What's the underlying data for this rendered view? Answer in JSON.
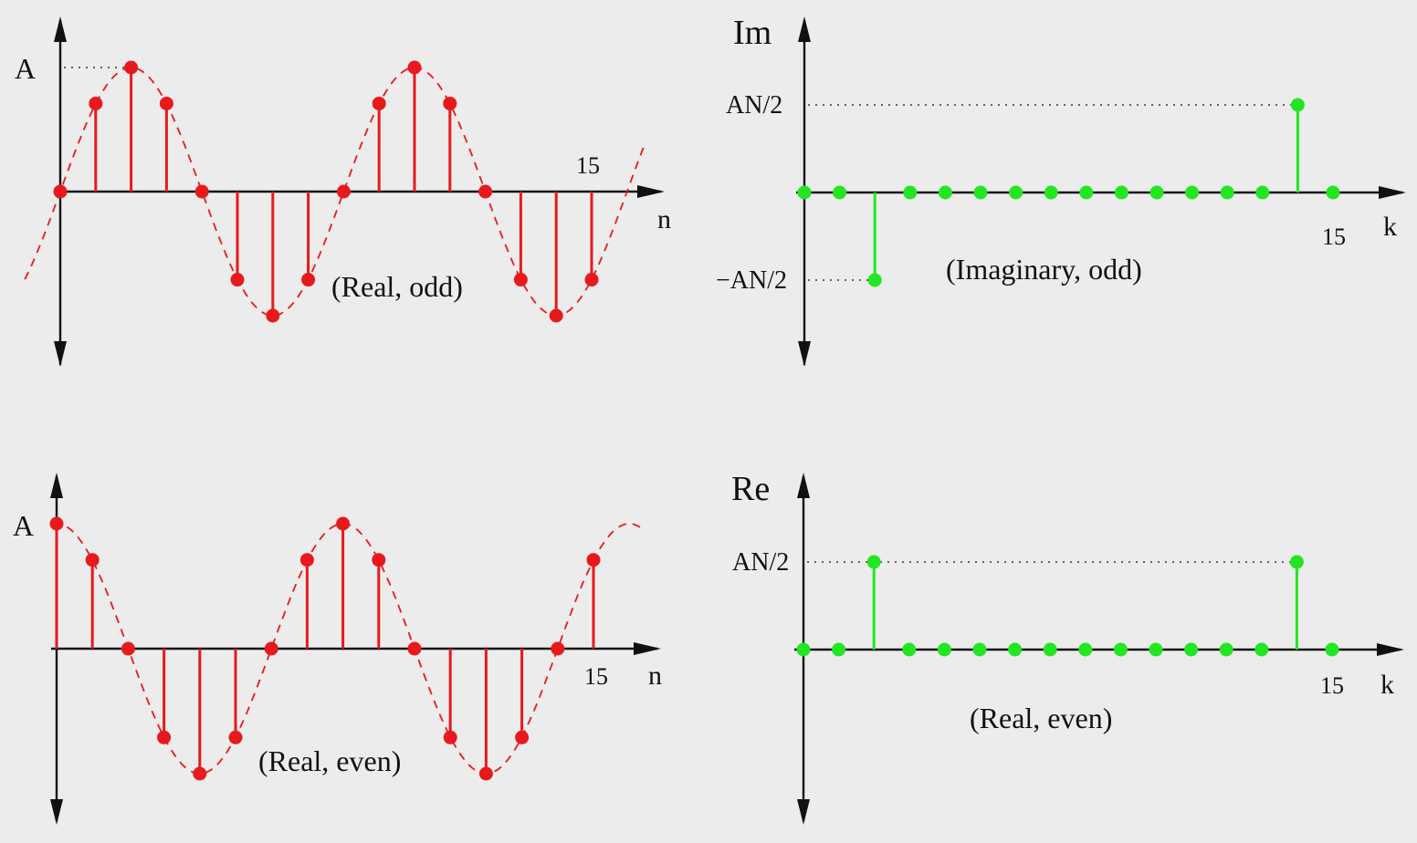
{
  "colors": {
    "background": "#ececec",
    "time_signal": "#e8191c",
    "spectrum": "#22e622",
    "axis": "#111111"
  },
  "chart_data": [
    {
      "type": "stem",
      "caption": "(Real, odd)",
      "xlabel": "n",
      "y_label": "A",
      "x_tick_label": "15",
      "x": [
        0,
        1,
        2,
        3,
        4,
        5,
        6,
        7,
        8,
        9,
        10,
        11,
        12,
        13,
        14,
        15
      ],
      "values": [
        0,
        0.71,
        1,
        0.71,
        0,
        -0.71,
        -1,
        -0.71,
        0,
        0.71,
        1,
        0.71,
        0,
        -0.71,
        -1,
        -0.71
      ],
      "envelope": "sine",
      "color": "#e8191c"
    },
    {
      "type": "stem",
      "ylabel": "Im",
      "caption": "(Imaginary, odd)",
      "xlabel": "k",
      "x_tick_label": "15",
      "level_labels": [
        "AN/2",
        "−AN/2"
      ],
      "x": [
        0,
        1,
        2,
        3,
        4,
        5,
        6,
        7,
        8,
        9,
        10,
        11,
        12,
        13,
        14,
        15
      ],
      "values": [
        0,
        0,
        -0.5,
        0,
        0,
        0,
        0,
        0,
        0,
        0,
        0,
        0,
        0,
        0,
        0.5,
        0
      ],
      "value_units": "AN",
      "color": "#22e622"
    },
    {
      "type": "stem",
      "caption": "(Real, even)",
      "xlabel": "n",
      "y_label": "A",
      "x_tick_label": "15",
      "x": [
        0,
        1,
        2,
        3,
        4,
        5,
        6,
        7,
        8,
        9,
        10,
        11,
        12,
        13,
        14,
        15
      ],
      "values": [
        1,
        0.71,
        0,
        -0.71,
        -1,
        -0.71,
        0,
        0.71,
        1,
        0.71,
        0,
        -0.71,
        -1,
        -0.71,
        0,
        0.71
      ],
      "envelope": "cosine",
      "color": "#e8191c"
    },
    {
      "type": "stem",
      "ylabel": "Re",
      "caption": "(Real, even)",
      "xlabel": "k",
      "x_tick_label": "15",
      "level_labels": [
        "AN/2"
      ],
      "x": [
        0,
        1,
        2,
        3,
        4,
        5,
        6,
        7,
        8,
        9,
        10,
        11,
        12,
        13,
        14,
        15
      ],
      "values": [
        0,
        0,
        0.5,
        0,
        0,
        0,
        0,
        0,
        0,
        0,
        0,
        0,
        0,
        0,
        0.5,
        0
      ],
      "value_units": "AN",
      "color": "#22e622"
    }
  ]
}
